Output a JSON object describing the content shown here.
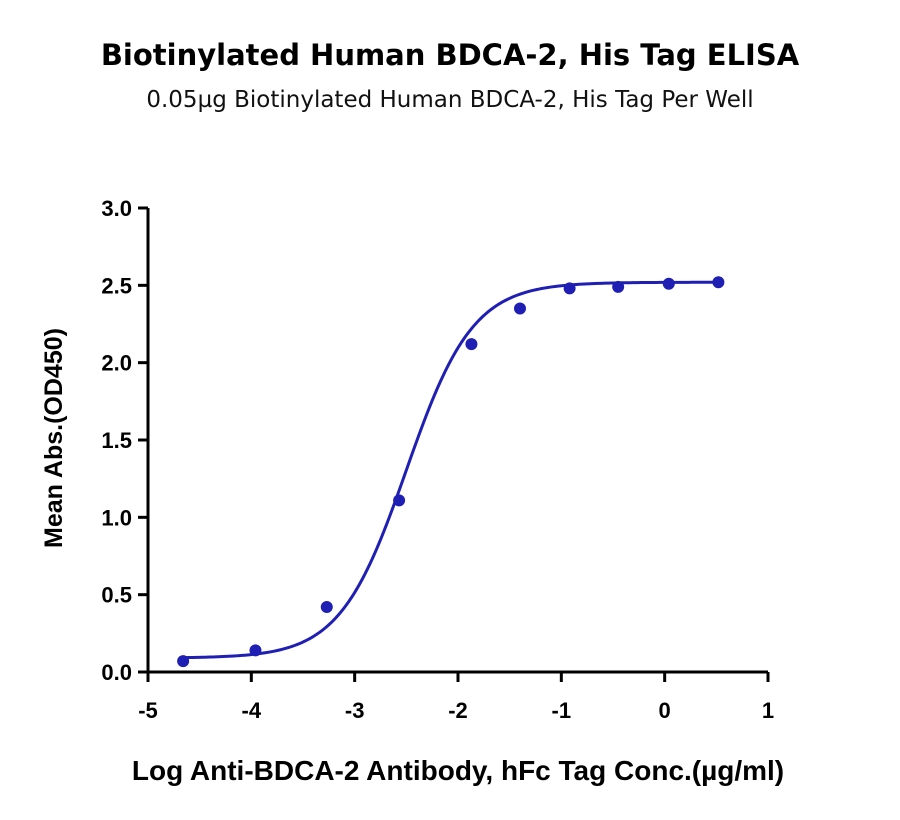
{
  "chart_data": {
    "type": "scatter",
    "title": "Biotinylated Human BDCA-2, His Tag ELISA",
    "subtitle": "0.05µg Biotinylated Human BDCA-2, His Tag Per Well",
    "xlabel": "Log Anti-BDCA-2 Antibody, hFc Tag Conc.(µg/ml)",
    "ylabel": "Mean Abs.(OD450)",
    "xlim": [
      -5,
      1
    ],
    "ylim": [
      0,
      3.0
    ],
    "xticks": [
      "-5",
      "-4",
      "-3",
      "-2",
      "-1",
      "0",
      "1"
    ],
    "yticks": [
      "0.0",
      "0.5",
      "1.0",
      "1.5",
      "2.0",
      "2.5",
      "3.0"
    ],
    "grid": false,
    "series": [
      {
        "x": [
          -4.66,
          -3.96,
          -3.27,
          -2.57,
          -1.87,
          -1.4,
          -0.92,
          -0.45,
          0.04,
          0.52
        ],
        "y": [
          0.07,
          0.14,
          0.42,
          1.11,
          2.12,
          2.35,
          2.48,
          2.49,
          2.51,
          2.52
        ],
        "fit": "sigmoidal"
      }
    ],
    "colors": {
      "series": "#1f1fb4",
      "axis": "#000000"
    }
  }
}
